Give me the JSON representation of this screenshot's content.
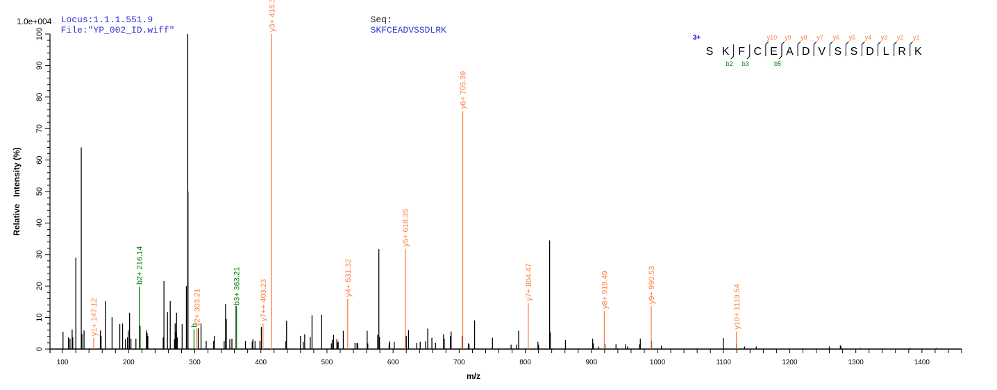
{
  "header": {
    "locus": "Locus:1.1.1.551.9",
    "file": "File:\"YP_002_ID.wiff\"",
    "seq_label": "Seq:",
    "seq_value": "SKFCEADVSSDLRK",
    "scale": "1.0e+004"
  },
  "colors": {
    "header_blue": "#3535d0",
    "y_ion": "#ff7f3f",
    "b_ion": "#008000",
    "peak": "#000000",
    "charge": "#0000ff"
  },
  "sequence_annotation": {
    "charge": "3+",
    "residues": [
      "S",
      "K",
      "F",
      "C",
      "E",
      "A",
      "D",
      "V",
      "S",
      "S",
      "D",
      "L",
      "R",
      "K"
    ],
    "y_marks": [
      {
        "label": "y10",
        "after": 3
      },
      {
        "label": "y9",
        "after": 4
      },
      {
        "label": "y8",
        "after": 5
      },
      {
        "label": "y7",
        "after": 6
      },
      {
        "label": "y6",
        "after": 7
      },
      {
        "label": "y5",
        "after": 8
      },
      {
        "label": "y4",
        "after": 9
      },
      {
        "label": "y3",
        "after": 10
      },
      {
        "label": "y2",
        "after": 11
      },
      {
        "label": "y1",
        "after": 12
      }
    ],
    "b_marks": [
      {
        "label": "b2",
        "after": 1
      },
      {
        "label": "b3",
        "after": 2
      },
      {
        "label": "b5",
        "after": 4
      }
    ]
  },
  "chart_data": {
    "type": "bar",
    "xlabel": "m/z",
    "ylabel": "Relative   Intensity (%)",
    "xlim": [
      81,
      1460
    ],
    "ylim": [
      0,
      100
    ],
    "xticks": [
      100,
      200,
      300,
      400,
      500,
      600,
      700,
      800,
      900,
      1000,
      1100,
      1200,
      1300,
      1400
    ],
    "yticks": [
      0,
      10,
      20,
      30,
      40,
      50,
      60,
      70,
      80,
      90,
      100
    ],
    "grid": false,
    "peaks": [
      [
        100.7,
        5.5
      ],
      [
        109,
        3.7
      ],
      [
        111.3,
        3.3
      ],
      [
        114.5,
        6.2
      ],
      [
        115.5,
        3.7
      ],
      [
        120.1,
        29
      ],
      [
        128.3,
        64
      ],
      [
        129.3,
        4.8
      ],
      [
        132.5,
        5.9
      ],
      [
        157.2,
        5.9
      ],
      [
        158.3,
        4.2
      ],
      [
        164.7,
        15.2
      ],
      [
        174.9,
        10.1
      ],
      [
        186.6,
        7.9
      ],
      [
        190.8,
        8.1
      ],
      [
        195,
        3.1
      ],
      [
        198.2,
        3.7
      ],
      [
        199.3,
        5.9
      ],
      [
        201.4,
        11.5
      ],
      [
        203.5,
        3.3
      ],
      [
        211,
        3.3
      ],
      [
        217.3,
        7.3
      ],
      [
        226.9,
        5.9
      ],
      [
        227.9,
        5.1
      ],
      [
        229,
        4.2
      ],
      [
        252.3,
        3.7
      ],
      [
        253.4,
        21.6
      ],
      [
        258.7,
        11.7
      ],
      [
        262.9,
        15.2
      ],
      [
        269.3,
        3.1
      ],
      [
        270.3,
        8.1
      ],
      [
        271.4,
        5.5
      ],
      [
        272.4,
        11.5
      ],
      [
        273.5,
        3.7
      ],
      [
        280.9,
        7.9
      ],
      [
        287.3,
        20
      ],
      [
        289.4,
        100
      ],
      [
        289.8,
        50
      ],
      [
        305.3,
        6.6
      ],
      [
        309.5,
        8.1
      ],
      [
        317.3,
        2.6
      ],
      [
        328.6,
        2.6
      ],
      [
        329.7,
        4.2
      ],
      [
        344.5,
        2.6
      ],
      [
        346.6,
        14.3
      ],
      [
        347.7,
        9.5
      ],
      [
        353,
        3.1
      ],
      [
        356.2,
        3.3
      ],
      [
        362.5,
        13.7
      ],
      [
        376.7,
        2.6
      ],
      [
        386.9,
        2.4
      ],
      [
        388,
        3.1
      ],
      [
        391.2,
        2.6
      ],
      [
        398.6,
        2.6
      ],
      [
        400.7,
        7
      ],
      [
        437.8,
        2.6
      ],
      [
        438.9,
        9
      ],
      [
        460,
        4.2
      ],
      [
        464.2,
        2.3
      ],
      [
        466.3,
        4.7
      ],
      [
        474.7,
        3.8
      ],
      [
        477.4,
        10.7
      ],
      [
        492,
        10.9
      ],
      [
        506.6,
        1.8
      ],
      [
        508,
        2.9
      ],
      [
        510,
        4.5
      ],
      [
        515,
        3.1
      ],
      [
        516,
        2
      ],
      [
        517,
        2.3
      ],
      [
        524.7,
        5.8
      ],
      [
        542.4,
        2
      ],
      [
        545.5,
        2
      ],
      [
        546.5,
        1.8
      ],
      [
        560.8,
        5.8
      ],
      [
        561.8,
        1.8
      ],
      [
        576.7,
        4.5
      ],
      [
        578.5,
        31.7
      ],
      [
        579.5,
        3.8
      ],
      [
        594,
        1.8
      ],
      [
        595,
        2.5
      ],
      [
        601.7,
        2.3
      ],
      [
        620,
        4.2
      ],
      [
        623.3,
        6
      ],
      [
        635.8,
        2
      ],
      [
        641,
        2.3
      ],
      [
        649.3,
        2.5
      ],
      [
        652.4,
        6.5
      ],
      [
        658.7,
        3.6
      ],
      [
        664.2,
        2
      ],
      [
        676.4,
        4.7
      ],
      [
        677.4,
        3.3
      ],
      [
        686.8,
        4.1
      ],
      [
        687.8,
        5.6
      ],
      [
        704.5,
        4.2
      ],
      [
        713.9,
        1.8
      ],
      [
        714.9,
        1.6
      ],
      [
        723.3,
        9.1
      ],
      [
        750.3,
        3.6
      ],
      [
        778.5,
        1.4
      ],
      [
        786.8,
        1.4
      ],
      [
        789.9,
        5.8
      ],
      [
        819.1,
        2.3
      ],
      [
        820.1,
        1.4
      ],
      [
        836.8,
        34.5
      ],
      [
        837.8,
        5.3
      ],
      [
        860.8,
        2.9
      ],
      [
        901.9,
        3.3
      ],
      [
        903,
        1.8
      ],
      [
        910.4,
        0.8
      ],
      [
        920.4,
        1.5
      ],
      [
        937.2,
        1.5
      ],
      [
        951.7,
        1.5
      ],
      [
        954.6,
        0.8
      ],
      [
        972.9,
        1.5
      ],
      [
        974,
        3.3
      ],
      [
        991,
        2.6
      ],
      [
        1006,
        1.1
      ],
      [
        1099.6,
        3.5
      ],
      [
        1119.3,
        1.8
      ],
      [
        1131.6,
        0.8
      ],
      [
        1149.4,
        0.8
      ],
      [
        1259.9,
        0.8
      ],
      [
        1276.6,
        1.2
      ],
      [
        1277.7,
        0.8
      ],
      [
        1306.7,
        0.3
      ],
      [
        1382.5,
        0.3
      ],
      [
        1422,
        0.3
      ]
    ],
    "annotated_peaks": [
      {
        "mz": 147.12,
        "intensity": 3.5,
        "label": "y1+ 147.12",
        "ion": "y"
      },
      {
        "mz": 216.14,
        "intensity": 19.8,
        "label": "b2+ 216.14",
        "ion": "b"
      },
      {
        "mz": 298.9,
        "intensity": 6.2,
        "label": "b",
        "ion": "b"
      },
      {
        "mz": 303.21,
        "intensity": 6.5,
        "label": "y2+ 303.21",
        "ion": "y"
      },
      {
        "mz": 363.21,
        "intensity": 13.2,
        "label": "b3+ 363.21",
        "ion": "b"
      },
      {
        "mz": 403.23,
        "intensity": 8.1,
        "label": "y7++ 403.23",
        "ion": "y"
      },
      {
        "mz": 416.3,
        "intensity": 100,
        "label": "y3+ 416.30",
        "ion": "y"
      },
      {
        "mz": 531.32,
        "intensity": 15.9,
        "label": "y4+ 531.32",
        "ion": "y"
      },
      {
        "mz": 618.35,
        "intensity": 31.8,
        "label": "y5+ 618.35",
        "ion": "y"
      },
      {
        "mz": 705.39,
        "intensity": 75.5,
        "label": "y6+ 705.39",
        "ion": "y"
      },
      {
        "mz": 804.47,
        "intensity": 14.5,
        "label": "y7+ 804.47",
        "ion": "y"
      },
      {
        "mz": 919.49,
        "intensity": 12.1,
        "label": "y8+ 919.49",
        "ion": "y"
      },
      {
        "mz": 990.53,
        "intensity": 13.6,
        "label": "y9+ 990.53",
        "ion": "y"
      },
      {
        "mz": 1119.54,
        "intensity": 5.6,
        "label": "y10+ 1119.54",
        "ion": "y"
      }
    ]
  }
}
